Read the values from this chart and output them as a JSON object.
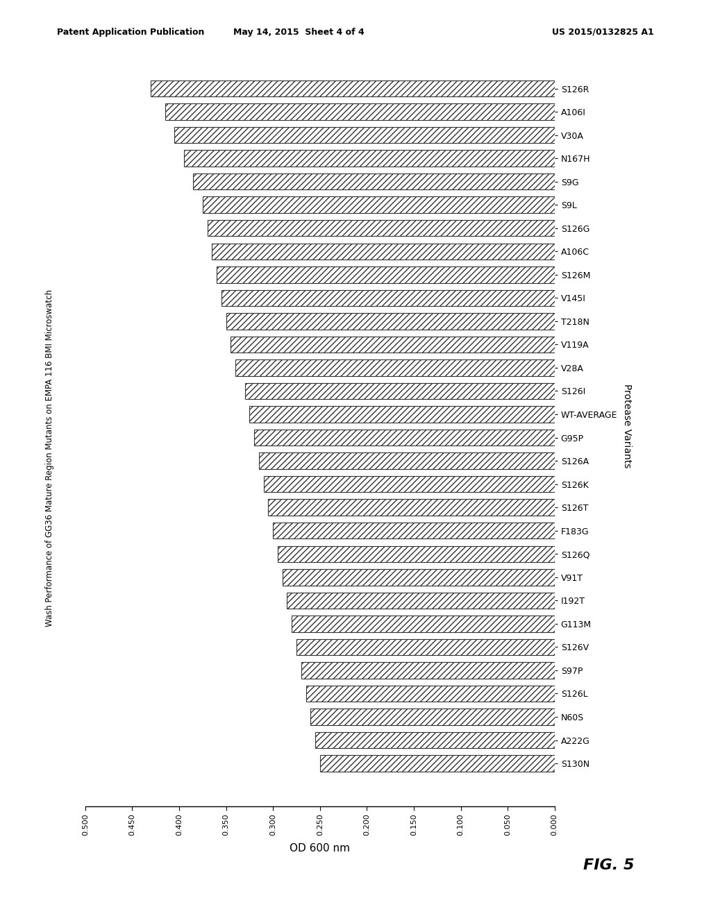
{
  "categories": [
    "S126R",
    "A106I",
    "V30A",
    "N167H",
    "S9G",
    "S9L",
    "S126G",
    "A106C",
    "S126M",
    "V145I",
    "T218N",
    "V119A",
    "V28A",
    "S126I",
    "WT-AVERAGE",
    "G95P",
    "S126A",
    "S126K",
    "S126T",
    "F183G",
    "S126Q",
    "V91T",
    "I192T",
    "G113M",
    "S126V",
    "S97P",
    "S126L",
    "N60S",
    "A222G",
    "S130N"
  ],
  "values": [
    0.43,
    0.415,
    0.405,
    0.395,
    0.385,
    0.375,
    0.37,
    0.365,
    0.36,
    0.355,
    0.35,
    0.345,
    0.34,
    0.33,
    0.325,
    0.32,
    0.315,
    0.31,
    0.305,
    0.3,
    0.295,
    0.29,
    0.285,
    0.28,
    0.275,
    0.27,
    0.265,
    0.26,
    0.255,
    0.25
  ],
  "xlabel": "OD 600 nm",
  "ylabel": "Wash Performance of GG36 Mature Region Mutants on EMPA 116 BMI Microswatch",
  "right_label": "Protease Variants",
  "title_top_left": "Patent Application Publication",
  "title_top_center": "May 14, 2015  Sheet 4 of 4",
  "title_top_right": "US 2015/0132825 A1",
  "fig_label": "FIG. 5",
  "xlim": [
    0.0,
    0.5
  ],
  "xticks": [
    0.5,
    0.45,
    0.4,
    0.35,
    0.3,
    0.25,
    0.2,
    0.15,
    0.1,
    0.05,
    0.0
  ],
  "hatch": "////",
  "bar_color": "white",
  "bar_edgecolor": "#333333",
  "background_color": "#ffffff"
}
